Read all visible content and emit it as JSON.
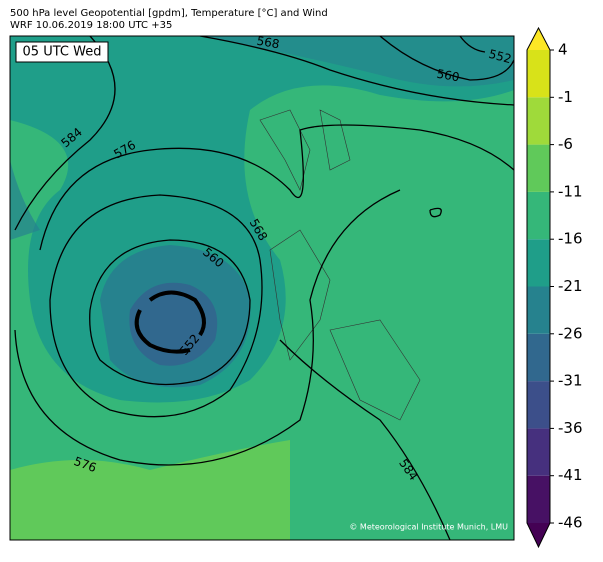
{
  "header": {
    "title": "500 hPa level Geopotential [gpdm], Temperature [°C] and Wind",
    "subtitle": "WRF 10.06.2019 18:00 UTC +35"
  },
  "map": {
    "time_label": "05 UTC Wed",
    "contour_labels": [
      "568",
      "560",
      "552",
      "584",
      "576",
      "568",
      "560",
      "552",
      "576",
      "584"
    ],
    "credit": "© Meteorological Institute Munich, LMU"
  },
  "colorbar": {
    "ticks": [
      -46,
      -41,
      -36,
      -31,
      -26,
      -21,
      -16,
      -11,
      -6,
      -1,
      4
    ],
    "colors": [
      "#471164",
      "#46307e",
      "#3c4f8a",
      "#31688e",
      "#26828e",
      "#1f9e89",
      "#35b779",
      "#60c95a",
      "#9fda3a",
      "#d8e219"
    ],
    "under_color": "#440154",
    "over_color": "#fde725"
  }
}
